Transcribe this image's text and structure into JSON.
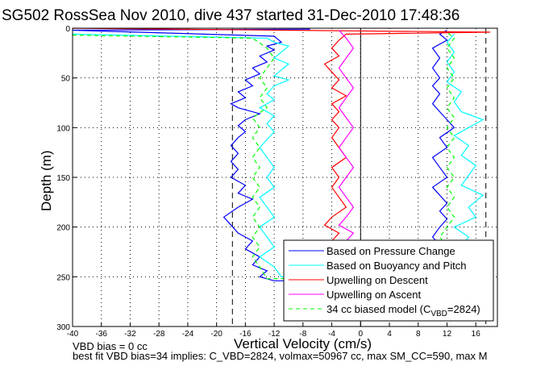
{
  "chart_data": {
    "type": "line",
    "title": "SG502 RossSea Nov 2010, dive 437 started 31-Dec-2010 17:48:36",
    "xlabel": "Vertical Velocity (cm/s)",
    "ylabel": "Depth (m)",
    "xlim": [
      -40,
      19
    ],
    "ylim": [
      0,
      300
    ],
    "y_reversed": true,
    "xticks": [
      -40,
      -36,
      -32,
      -28,
      -24,
      -20,
      -16,
      -12,
      -8,
      -4,
      0,
      4,
      8,
      12,
      16
    ],
    "yticks": [
      0,
      50,
      100,
      150,
      200,
      250,
      300
    ],
    "grid": true,
    "legend_position": "bottom-right",
    "vertical_lines": [
      {
        "x": -17.8,
        "style": "dashed"
      },
      {
        "x": 17.4,
        "style": "dashed"
      },
      {
        "x": 0,
        "style": "solid"
      }
    ],
    "series": [
      {
        "name": "Based on Pressure Change",
        "color": "#0000ff",
        "style": "solid",
        "points": [
          [
            -7,
            1
          ],
          [
            -40,
            2
          ],
          [
            -12,
            8
          ],
          [
            -11,
            14
          ],
          [
            -13,
            18
          ],
          [
            -12,
            22
          ],
          [
            -14,
            28
          ],
          [
            -13,
            34
          ],
          [
            -15,
            40
          ],
          [
            -14,
            46
          ],
          [
            -16,
            52
          ],
          [
            -15,
            58
          ],
          [
            -17,
            64
          ],
          [
            -16,
            70
          ],
          [
            -18,
            76
          ],
          [
            -17,
            80
          ],
          [
            -14,
            86
          ],
          [
            -16,
            92
          ],
          [
            -17,
            98
          ],
          [
            -16,
            104
          ],
          [
            -17,
            110
          ],
          [
            -18,
            118
          ],
          [
            -17,
            126
          ],
          [
            -18,
            134
          ],
          [
            -17,
            142
          ],
          [
            -18,
            150
          ],
          [
            -16,
            158
          ],
          [
            -17,
            166
          ],
          [
            -15,
            172
          ],
          [
            -17,
            180
          ],
          [
            -19,
            190
          ],
          [
            -18,
            198
          ],
          [
            -17,
            206
          ],
          [
            -15,
            214
          ],
          [
            -16,
            222
          ],
          [
            -14,
            230
          ],
          [
            -15,
            238
          ],
          [
            -13,
            244
          ],
          [
            -14,
            250
          ],
          [
            -12,
            254
          ],
          [
            11,
            254
          ],
          [
            10,
            245
          ],
          [
            11,
            236
          ],
          [
            10,
            228
          ],
          [
            11,
            218
          ],
          [
            10,
            210
          ],
          [
            11,
            200
          ],
          [
            12,
            192
          ],
          [
            11,
            184
          ],
          [
            12,
            176
          ],
          [
            11,
            168
          ],
          [
            10,
            160
          ],
          [
            12,
            150
          ],
          [
            11,
            140
          ],
          [
            10,
            130
          ],
          [
            12,
            120
          ],
          [
            11,
            110
          ],
          [
            13,
            100
          ],
          [
            12,
            92
          ],
          [
            11,
            84
          ],
          [
            10,
            76
          ],
          [
            11,
            66
          ],
          [
            10,
            58
          ],
          [
            11,
            50
          ],
          [
            10,
            40
          ],
          [
            11,
            30
          ],
          [
            10,
            20
          ],
          [
            12,
            12
          ],
          [
            11,
            6
          ],
          [
            12,
            2
          ]
        ]
      },
      {
        "name": "Based on Buoyancy and Pitch",
        "color": "#00ffff",
        "style": "solid",
        "points": [
          [
            -40,
            6
          ],
          [
            -13,
            10
          ],
          [
            -12,
            14
          ],
          [
            -10,
            18
          ],
          [
            -11,
            24
          ],
          [
            -12,
            30
          ],
          [
            -10,
            36
          ],
          [
            -11,
            42
          ],
          [
            -12,
            48
          ],
          [
            -10,
            52
          ],
          [
            -12,
            58
          ],
          [
            -13,
            66
          ],
          [
            -12,
            72
          ],
          [
            -14,
            80
          ],
          [
            -12,
            88
          ],
          [
            -13,
            96
          ],
          [
            -12,
            104
          ],
          [
            -13,
            112
          ],
          [
            -14,
            120
          ],
          [
            -13,
            130
          ],
          [
            -12,
            140
          ],
          [
            -13,
            150
          ],
          [
            -12,
            160
          ],
          [
            -14,
            170
          ],
          [
            -13,
            180
          ],
          [
            -12,
            190
          ],
          [
            -14,
            200
          ],
          [
            -13,
            210
          ],
          [
            -12,
            220
          ],
          [
            -14,
            230
          ],
          [
            -12,
            240
          ],
          [
            -11,
            250
          ],
          [
            12,
            250
          ],
          [
            13,
            240
          ],
          [
            12,
            230
          ],
          [
            14,
            220
          ],
          [
            15,
            210
          ],
          [
            13,
            200
          ],
          [
            16,
            190
          ],
          [
            15,
            180
          ],
          [
            17,
            168
          ],
          [
            14,
            158
          ],
          [
            15,
            148
          ],
          [
            16,
            138
          ],
          [
            14,
            128
          ],
          [
            15,
            118
          ],
          [
            13,
            108
          ],
          [
            17,
            92
          ],
          [
            14,
            84
          ],
          [
            13,
            74
          ],
          [
            14,
            64
          ],
          [
            12,
            54
          ],
          [
            13,
            44
          ],
          [
            12,
            34
          ],
          [
            13,
            24
          ],
          [
            12,
            14
          ],
          [
            13,
            6
          ]
        ]
      },
      {
        "name": "Upwelling on Descent",
        "color": "#ff0000",
        "style": "solid",
        "points": [
          [
            -40,
            0
          ],
          [
            18,
            4
          ],
          [
            -2,
            6
          ],
          [
            -3,
            12
          ],
          [
            -4,
            20
          ],
          [
            -3,
            28
          ],
          [
            -5,
            36
          ],
          [
            -4,
            44
          ],
          [
            -3,
            52
          ],
          [
            -4,
            60
          ],
          [
            -2,
            68
          ],
          [
            -4,
            76
          ],
          [
            -3,
            84
          ],
          [
            -4,
            92
          ],
          [
            -3,
            100
          ],
          [
            -4,
            110
          ],
          [
            -3,
            120
          ],
          [
            -2,
            130
          ],
          [
            -4,
            140
          ],
          [
            -3,
            150
          ],
          [
            -4,
            160
          ],
          [
            -3,
            170
          ],
          [
            -2,
            180
          ],
          [
            -4,
            190
          ],
          [
            -5,
            198
          ],
          [
            -3,
            206
          ],
          [
            -4,
            214
          ]
        ]
      },
      {
        "name": "Upwelling on Ascent",
        "color": "#ff00ff",
        "style": "solid",
        "points": [
          [
            -2,
            214
          ],
          [
            -1,
            206
          ],
          [
            -3,
            198
          ],
          [
            -2,
            190
          ],
          [
            -1,
            180
          ],
          [
            -2,
            170
          ],
          [
            -3,
            160
          ],
          [
            -2,
            150
          ],
          [
            -1,
            140
          ],
          [
            -2,
            130
          ],
          [
            -3,
            120
          ],
          [
            -2,
            110
          ],
          [
            -1,
            100
          ],
          [
            -2,
            90
          ],
          [
            -3,
            80
          ],
          [
            -2,
            70
          ],
          [
            -1,
            60
          ],
          [
            -2,
            50
          ],
          [
            -3,
            40
          ],
          [
            -2,
            30
          ],
          [
            -1,
            20
          ],
          [
            -2,
            10
          ],
          [
            -3,
            2
          ]
        ]
      },
      {
        "name": "34 cc biased model (C_VBD=2824)",
        "legend_main": "34 cc biased model (C",
        "legend_sub": "VBD",
        "legend_tail": "=2824)",
        "color": "#00ff00",
        "style": "dashed",
        "points": [
          [
            -40,
            7
          ],
          [
            -15,
            10
          ],
          [
            -13,
            20
          ],
          [
            -12,
            30
          ],
          [
            -13,
            40
          ],
          [
            -14,
            50
          ],
          [
            -13,
            60
          ],
          [
            -14,
            70
          ],
          [
            -13,
            80
          ],
          [
            -15,
            90
          ],
          [
            -14,
            100
          ],
          [
            -15,
            110
          ],
          [
            -14,
            120
          ],
          [
            -15,
            130
          ],
          [
            -14,
            140
          ],
          [
            -15,
            150
          ],
          [
            -14,
            160
          ],
          [
            -15,
            170
          ],
          [
            -14,
            180
          ],
          [
            -15,
            190
          ],
          [
            -14,
            200
          ],
          [
            -15,
            210
          ],
          [
            -14,
            220
          ],
          [
            -15,
            230
          ],
          [
            -14,
            240
          ],
          [
            -13,
            252
          ],
          [
            11,
            250
          ],
          [
            12,
            240
          ],
          [
            11,
            230
          ],
          [
            12,
            220
          ],
          [
            11,
            210
          ],
          [
            12,
            200
          ],
          [
            13,
            190
          ],
          [
            12,
            180
          ],
          [
            13,
            170
          ],
          [
            12,
            160
          ],
          [
            13,
            150
          ],
          [
            12,
            140
          ],
          [
            13,
            130
          ],
          [
            12,
            120
          ],
          [
            13,
            110
          ],
          [
            12,
            100
          ],
          [
            13,
            90
          ],
          [
            12,
            80
          ],
          [
            13,
            70
          ],
          [
            12,
            60
          ],
          [
            13,
            50
          ],
          [
            12,
            40
          ],
          [
            13,
            30
          ],
          [
            12,
            20
          ],
          [
            13,
            10
          ],
          [
            12,
            4
          ]
        ]
      }
    ],
    "annotations": [
      "VBD bias = 0 cc",
      "best fit VBD bias=34 implies: C_VBD=2824, volmax=50967 cc, max SM_CC=590, max M"
    ]
  }
}
